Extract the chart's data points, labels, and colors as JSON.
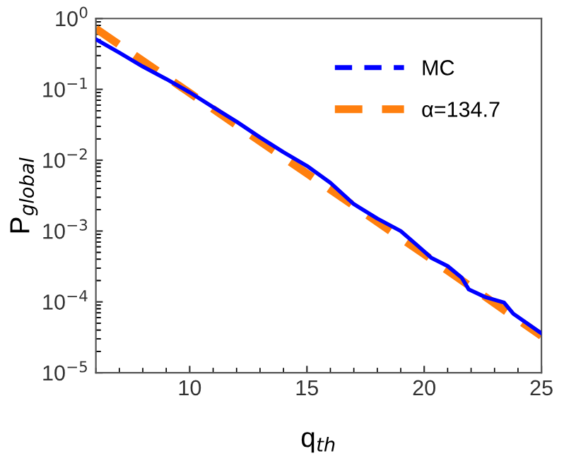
{
  "chart_data": {
    "type": "line",
    "xlabel": "q$_{th}$",
    "ylabel": "P$_{global}$",
    "log": "y",
    "xlim": [
      6,
      25
    ],
    "xticks": [
      10,
      15,
      20,
      25
    ],
    "ylim": [
      1e-05,
      1
    ],
    "yticks": [
      {
        "value": 1e-05,
        "label": "10$^{−5}$"
      },
      {
        "value": 0.0001,
        "label": "10$^{−4}$"
      },
      {
        "value": 0.001,
        "label": "10$^{−3}$"
      },
      {
        "value": 0.01,
        "label": "10$^{−2}$"
      },
      {
        "value": 0.1,
        "label": "10$^{−1}$"
      },
      {
        "value": 1,
        "label": "10$^{0}$"
      }
    ],
    "grid": false,
    "legend": "top right",
    "marker": "none",
    "series": [
      {
        "name": "MC",
        "color": "#0000ff",
        "line_style": "solid",
        "x": [
          6,
          7,
          8,
          9,
          10,
          11,
          12,
          13,
          14,
          15,
          16,
          17,
          18,
          19,
          19.7,
          20.3,
          21,
          21.6,
          21.9,
          22.6,
          23.4,
          23.8,
          25
        ],
        "values": [
          0.51,
          0.33,
          0.21,
          0.14,
          0.091,
          0.056,
          0.035,
          0.021,
          0.013,
          0.0083,
          0.0048,
          0.0024,
          0.0015,
          0.001,
          0.00063,
          0.00042,
          0.00032,
          0.00022,
          0.00015,
          0.000117,
          9.8e-05,
          6.8e-05,
          3.6e-05
        ]
      },
      {
        "name": "α=134.7",
        "color": "#ff7f0e",
        "line_style": "dashed",
        "x": [
          6,
          10,
          15,
          20,
          25
        ],
        "values": [
          0.72,
          0.089,
          0.0065,
          0.00047,
          3.3e-05
        ]
      }
    ]
  }
}
